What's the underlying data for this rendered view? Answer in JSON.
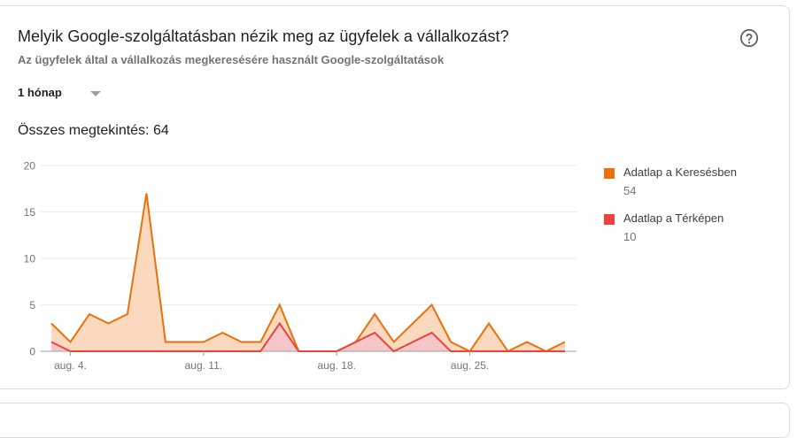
{
  "card": {
    "title": "Melyik Google-szolgáltatásban nézik meg az ügyfelek a vállalkozást?",
    "subtitle": "Az ügyfelek által a vállalkozás megkeresésére használt Google-szolgáltatások",
    "help_icon": "help-circle-icon",
    "range_selector": {
      "selected": "1 hónap",
      "icon": "dropdown-caret-icon"
    },
    "total_label": "Összes megtekintés: 64"
  },
  "legend": [
    {
      "label": "Adatlap a Keresésben",
      "value": "54",
      "color": "#e8710a"
    },
    {
      "label": "Adatlap a Térképen",
      "value": "10",
      "color": "#e8453c"
    }
  ],
  "chart_data": {
    "type": "area",
    "stacked": true,
    "title": "",
    "xlabel": "",
    "ylabel": "",
    "ylim": [
      0,
      20
    ],
    "yticks": [
      0,
      5,
      10,
      15,
      20
    ],
    "xtick_labels": [
      {
        "label": "aug. 4.",
        "index": 1
      },
      {
        "label": "aug. 11.",
        "index": 8
      },
      {
        "label": "aug. 18.",
        "index": 15
      },
      {
        "label": "aug. 25.",
        "index": 22
      }
    ],
    "grid": true,
    "legend_position": "right",
    "x": [
      "aug. 3.",
      "aug. 4.",
      "aug. 5.",
      "aug. 6.",
      "aug. 7.",
      "aug. 8.",
      "aug. 9.",
      "aug. 10.",
      "aug. 11.",
      "aug. 12.",
      "aug. 13.",
      "aug. 14.",
      "aug. 15.",
      "aug. 16.",
      "aug. 17.",
      "aug. 18.",
      "aug. 19.",
      "aug. 20.",
      "aug. 21.",
      "aug. 22.",
      "aug. 23.",
      "aug. 24.",
      "aug. 25.",
      "aug. 26.",
      "aug. 27.",
      "aug. 28.",
      "aug. 29.",
      "aug. 30."
    ],
    "series": [
      {
        "name": "Adatlap a Keresésben",
        "total": 54,
        "color": "#e8710a",
        "fill": "#fbd9bf",
        "values": [
          2,
          1,
          4,
          3,
          4,
          17,
          1,
          1,
          1,
          2,
          1,
          1,
          2,
          0,
          0,
          0,
          0,
          2,
          1,
          2,
          3,
          1,
          0,
          3,
          0,
          1,
          0,
          1
        ]
      },
      {
        "name": "Adatlap a Térképen",
        "total": 10,
        "color": "#e8453c",
        "fill": "#f7c6c8",
        "values": [
          1,
          0,
          0,
          0,
          0,
          0,
          0,
          0,
          0,
          0,
          0,
          0,
          3,
          0,
          0,
          0,
          1,
          2,
          0,
          1,
          2,
          0,
          0,
          0,
          0,
          0,
          0,
          0
        ]
      }
    ],
    "stacked_totals": [
      3,
      1,
      4,
      3,
      4,
      17,
      1,
      1,
      1,
      2,
      1,
      1,
      5,
      0,
      0,
      0,
      1,
      4,
      1,
      3,
      5,
      1,
      0,
      3,
      0,
      1,
      0,
      1
    ]
  }
}
